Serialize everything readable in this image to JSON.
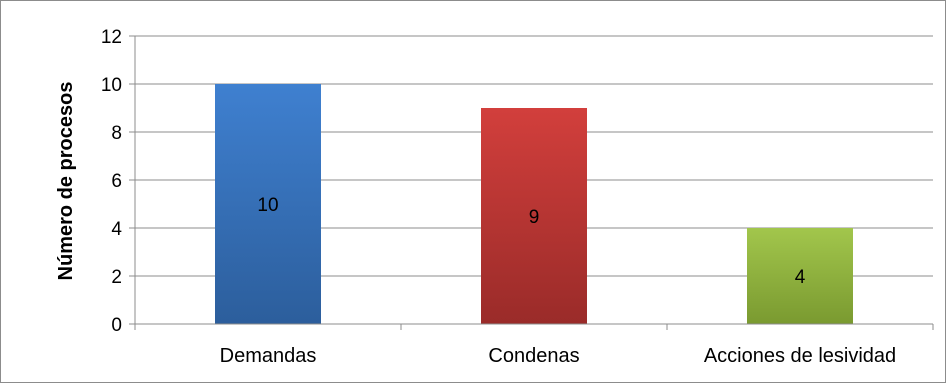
{
  "chart_data": {
    "type": "bar",
    "title": "",
    "xlabel": "",
    "ylabel": "Número de procesos",
    "categories": [
      "Demandas",
      "Condenas",
      "Acciones de lesividad"
    ],
    "values": [
      10,
      9,
      4
    ],
    "data_labels": [
      "10",
      "9",
      "4"
    ],
    "ylim": [
      0,
      12
    ],
    "yticks": [
      0,
      2,
      4,
      6,
      8,
      10,
      12
    ],
    "ytick_labels": [
      "0",
      "2",
      "4",
      "6",
      "8",
      "10",
      "12"
    ],
    "grid": true,
    "legend": "none",
    "colors": [
      {
        "top": "#3f80d0",
        "bottom": "#2c5e9c"
      },
      {
        "top": "#d23f3c",
        "bottom": "#9a2b29"
      },
      {
        "top": "#a2c64c",
        "bottom": "#7a9a30"
      }
    ],
    "gridline_color": "#8c8c8c",
    "axis_color": "#8c8c8c"
  }
}
